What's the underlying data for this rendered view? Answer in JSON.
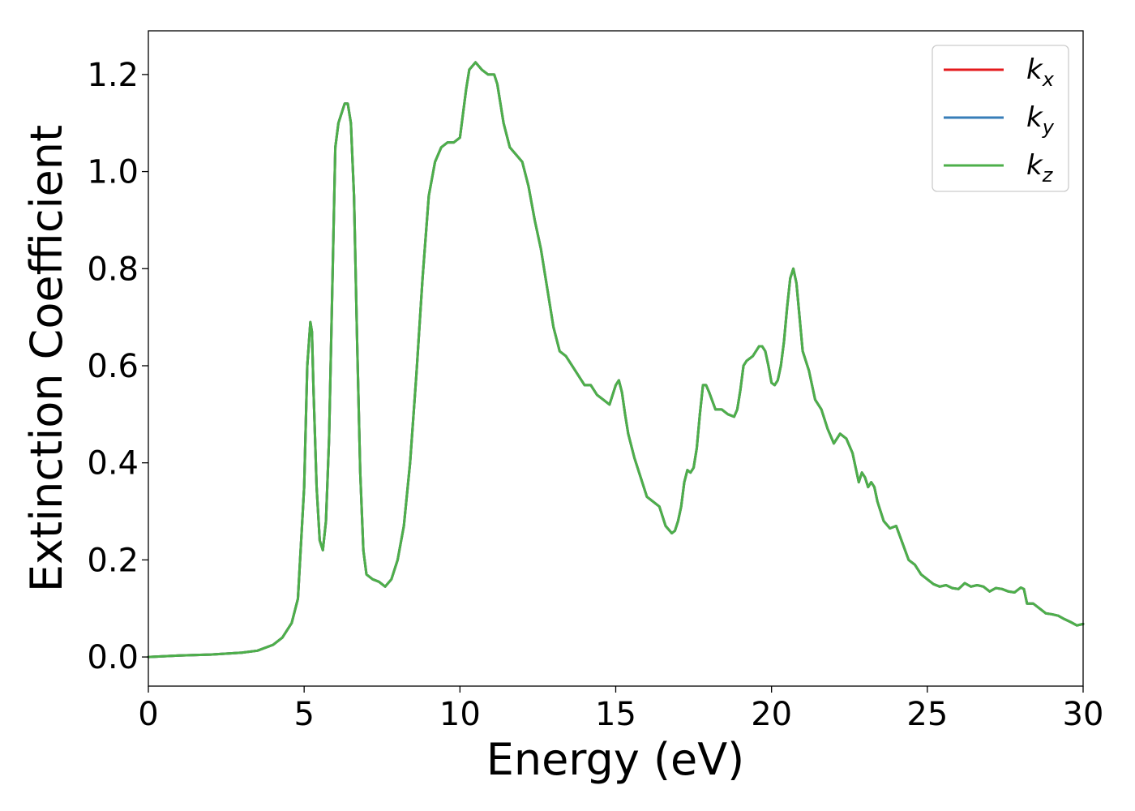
{
  "chart_data": {
    "type": "line",
    "xlabel": "Energy (eV)",
    "ylabel": "Extinction Coefficient",
    "xlim": [
      0,
      30
    ],
    "ylim": [
      -0.06,
      1.29
    ],
    "xticks": [
      0,
      5,
      10,
      15,
      20,
      25,
      30
    ],
    "xtick_labels": [
      "0",
      "5",
      "10",
      "15",
      "20",
      "25",
      "30"
    ],
    "yticks": [
      0.0,
      0.2,
      0.4,
      0.6,
      0.8,
      1.0,
      1.2
    ],
    "ytick_labels": [
      "0.0",
      "0.2",
      "0.4",
      "0.6",
      "0.8",
      "1.0",
      "1.2"
    ],
    "grid": false,
    "legend_position": "top-right",
    "series": [
      {
        "name": "k",
        "sub": "x",
        "color": "#e41a1c"
      },
      {
        "name": "k",
        "sub": "y",
        "color": "#377eb8"
      },
      {
        "name": "k",
        "sub": "z",
        "color": "#4daf4a"
      }
    ],
    "x": [
      0,
      1,
      2,
      3,
      3.5,
      4,
      4.3,
      4.6,
      4.8,
      5.0,
      5.1,
      5.2,
      5.25,
      5.3,
      5.4,
      5.5,
      5.6,
      5.7,
      5.8,
      5.9,
      6.0,
      6.1,
      6.2,
      6.3,
      6.4,
      6.5,
      6.6,
      6.7,
      6.8,
      6.9,
      7.0,
      7.1,
      7.2,
      7.4,
      7.6,
      7.8,
      8.0,
      8.2,
      8.4,
      8.6,
      8.8,
      9.0,
      9.2,
      9.4,
      9.6,
      9.8,
      10.0,
      10.2,
      10.3,
      10.5,
      10.7,
      10.9,
      11.0,
      11.1,
      11.2,
      11.4,
      11.6,
      11.8,
      12.0,
      12.2,
      12.4,
      12.6,
      12.8,
      13.0,
      13.2,
      13.4,
      13.6,
      13.8,
      14.0,
      14.2,
      14.4,
      14.6,
      14.8,
      15.0,
      15.1,
      15.2,
      15.3,
      15.4,
      15.6,
      15.8,
      16.0,
      16.2,
      16.4,
      16.6,
      16.8,
      16.9,
      17.0,
      17.1,
      17.2,
      17.3,
      17.4,
      17.5,
      17.6,
      17.7,
      17.8,
      17.9,
      18.0,
      18.2,
      18.4,
      18.6,
      18.8,
      18.9,
      19.0,
      19.1,
      19.2,
      19.4,
      19.6,
      19.7,
      19.8,
      19.9,
      20.0,
      20.1,
      20.2,
      20.3,
      20.4,
      20.5,
      20.6,
      20.7,
      20.8,
      20.9,
      21.0,
      21.2,
      21.4,
      21.6,
      21.8,
      22.0,
      22.1,
      22.2,
      22.4,
      22.6,
      22.8,
      22.9,
      23.0,
      23.1,
      23.2,
      23.3,
      23.4,
      23.6,
      23.8,
      24.0,
      24.2,
      24.4,
      24.6,
      24.8,
      25.0,
      25.2,
      25.4,
      25.6,
      25.8,
      26.0,
      26.2,
      26.4,
      26.6,
      26.8,
      27.0,
      27.2,
      27.4,
      27.6,
      27.8,
      28.0,
      28.1,
      28.2,
      28.4,
      28.6,
      28.8,
      29.0,
      29.2,
      29.4,
      29.6,
      29.8,
      30.0
    ],
    "y": [
      0.0,
      0.003,
      0.005,
      0.009,
      0.013,
      0.025,
      0.04,
      0.07,
      0.12,
      0.35,
      0.6,
      0.69,
      0.67,
      0.55,
      0.35,
      0.24,
      0.22,
      0.28,
      0.45,
      0.75,
      1.05,
      1.1,
      1.12,
      1.14,
      1.14,
      1.1,
      0.95,
      0.65,
      0.38,
      0.22,
      0.17,
      0.165,
      0.16,
      0.155,
      0.145,
      0.16,
      0.2,
      0.27,
      0.4,
      0.58,
      0.78,
      0.95,
      1.02,
      1.05,
      1.06,
      1.06,
      1.07,
      1.17,
      1.21,
      1.225,
      1.21,
      1.2,
      1.2,
      1.2,
      1.18,
      1.1,
      1.05,
      1.035,
      1.02,
      0.97,
      0.9,
      0.84,
      0.76,
      0.68,
      0.63,
      0.62,
      0.6,
      0.58,
      0.56,
      0.56,
      0.54,
      0.53,
      0.52,
      0.56,
      0.57,
      0.545,
      0.5,
      0.46,
      0.41,
      0.37,
      0.33,
      0.32,
      0.31,
      0.27,
      0.255,
      0.26,
      0.28,
      0.31,
      0.36,
      0.385,
      0.38,
      0.39,
      0.43,
      0.5,
      0.56,
      0.56,
      0.545,
      0.51,
      0.51,
      0.5,
      0.495,
      0.51,
      0.55,
      0.6,
      0.61,
      0.62,
      0.64,
      0.64,
      0.63,
      0.6,
      0.565,
      0.56,
      0.57,
      0.6,
      0.65,
      0.72,
      0.78,
      0.8,
      0.77,
      0.7,
      0.63,
      0.59,
      0.53,
      0.51,
      0.47,
      0.44,
      0.45,
      0.46,
      0.45,
      0.42,
      0.36,
      0.38,
      0.37,
      0.35,
      0.36,
      0.35,
      0.32,
      0.28,
      0.265,
      0.27,
      0.235,
      0.2,
      0.19,
      0.17,
      0.16,
      0.15,
      0.145,
      0.148,
      0.142,
      0.14,
      0.152,
      0.145,
      0.148,
      0.145,
      0.135,
      0.142,
      0.14,
      0.135,
      0.133,
      0.143,
      0.14,
      0.11,
      0.11,
      0.1,
      0.09,
      0.088,
      0.085,
      0.078,
      0.072,
      0.065,
      0.068
    ]
  }
}
